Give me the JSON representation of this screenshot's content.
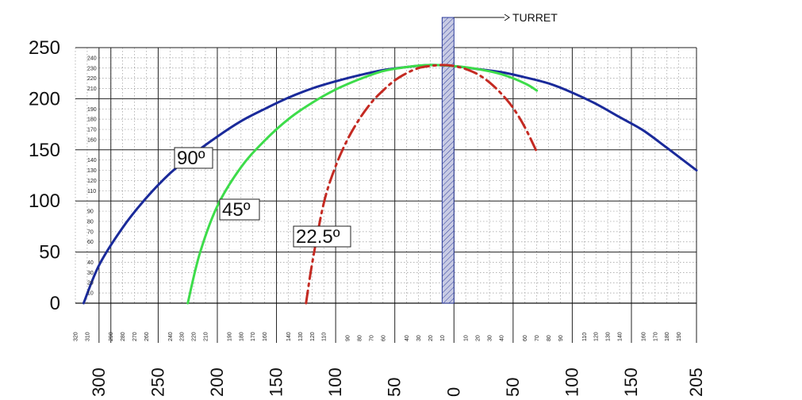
{
  "chart_data": {
    "type": "line",
    "title": "",
    "xlabel": "",
    "ylabel": "",
    "xlim": [
      -320,
      205
    ],
    "ylim": [
      0,
      250
    ],
    "grid": true,
    "x_major_tick_labels": [
      "300",
      "250",
      "200",
      "150",
      "100",
      "50",
      "0",
      "50",
      "100",
      "150",
      "205"
    ],
    "x_major_tick_values": [
      -300,
      -250,
      -200,
      -150,
      -100,
      -50,
      0,
      50,
      100,
      150,
      205
    ],
    "y_major_tick_labels": [
      "0",
      "50",
      "100",
      "150",
      "200",
      "250"
    ],
    "y_major_tick_values": [
      0,
      50,
      100,
      150,
      200,
      250
    ],
    "x_minor_tick_labels_left": [
      "320",
      "310",
      "290",
      "280",
      "270",
      "260",
      "240",
      "230",
      "220",
      "210",
      "190",
      "180",
      "170",
      "160",
      "140",
      "130",
      "120",
      "110",
      "90",
      "80",
      "70",
      "60",
      "40",
      "30",
      "20",
      "10"
    ],
    "x_minor_tick_labels_right": [
      "10",
      "20",
      "30",
      "40",
      "60",
      "70",
      "80",
      "90",
      "110",
      "120",
      "130",
      "140",
      "160",
      "170",
      "180",
      "190"
    ],
    "y_minor_tick_labels": [
      "10",
      "20",
      "30",
      "40",
      "60",
      "70",
      "80",
      "90",
      "110",
      "120",
      "130",
      "140",
      "160",
      "170",
      "180",
      "190",
      "210",
      "220",
      "230",
      "240"
    ],
    "turret": {
      "label": "TURRET",
      "x_range": [
        -10,
        0
      ],
      "color": "#c8cbe4"
    },
    "series": [
      {
        "name": "90º",
        "color": "#1a2a9a",
        "style": "solid",
        "x": [
          -313,
          -300,
          -280,
          -260,
          -240,
          -220,
          -200,
          -180,
          -160,
          -140,
          -120,
          -100,
          -80,
          -60,
          -40,
          -20,
          0,
          20,
          40,
          60,
          80,
          100,
          120,
          140,
          160,
          180,
          205
        ],
        "y": [
          0,
          37,
          74,
          103,
          127,
          146,
          163,
          178,
          190,
          201,
          210,
          217,
          223,
          228,
          231,
          233,
          232,
          229,
          226,
          221,
          215,
          206,
          195,
          182,
          169,
          152,
          130
        ]
      },
      {
        "name": "45º",
        "color": "#3ddc4a",
        "style": "solid",
        "x": [
          -225,
          -215,
          -200,
          -180,
          -160,
          -140,
          -120,
          -100,
          -80,
          -60,
          -40,
          -20,
          0,
          20,
          40,
          60,
          70
        ],
        "y": [
          0,
          48,
          95,
          133,
          159,
          180,
          196,
          209,
          219,
          227,
          231,
          233,
          232,
          229,
          224,
          215,
          208
        ]
      },
      {
        "name": "22.5º",
        "color": "#c42a22",
        "style": "dash-dot",
        "x": [
          -125,
          -120,
          -110,
          -100,
          -90,
          -80,
          -70,
          -60,
          -50,
          -40,
          -30,
          -20,
          -10,
          0,
          10,
          20,
          30,
          40,
          50,
          60,
          70
        ],
        "y": [
          0,
          38,
          98,
          134,
          160,
          180,
          196,
          208,
          218,
          225,
          230,
          232,
          233,
          232,
          229,
          224,
          216,
          205,
          191,
          172,
          148
        ]
      }
    ]
  }
}
